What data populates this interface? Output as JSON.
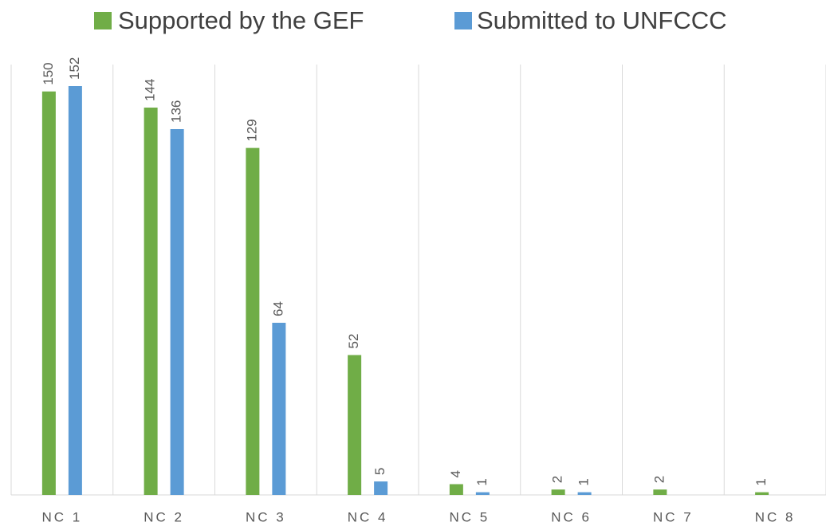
{
  "chart_data": {
    "type": "bar",
    "categories": [
      "NC 1",
      "NC 2",
      "NC 3",
      "NC 4",
      "NC 5",
      "NC 6",
      "NC 7",
      "NC 8"
    ],
    "series": [
      {
        "name": "Supported by the GEF",
        "color": "#70ad47",
        "values": [
          150,
          144,
          129,
          52,
          4,
          2,
          2,
          1
        ]
      },
      {
        "name": "Submitted to UNFCCC",
        "color": "#5b9bd5",
        "values": [
          152,
          136,
          64,
          5,
          1,
          1,
          null,
          null
        ]
      }
    ],
    "ylim": [
      0,
      160
    ],
    "legend": "top"
  }
}
